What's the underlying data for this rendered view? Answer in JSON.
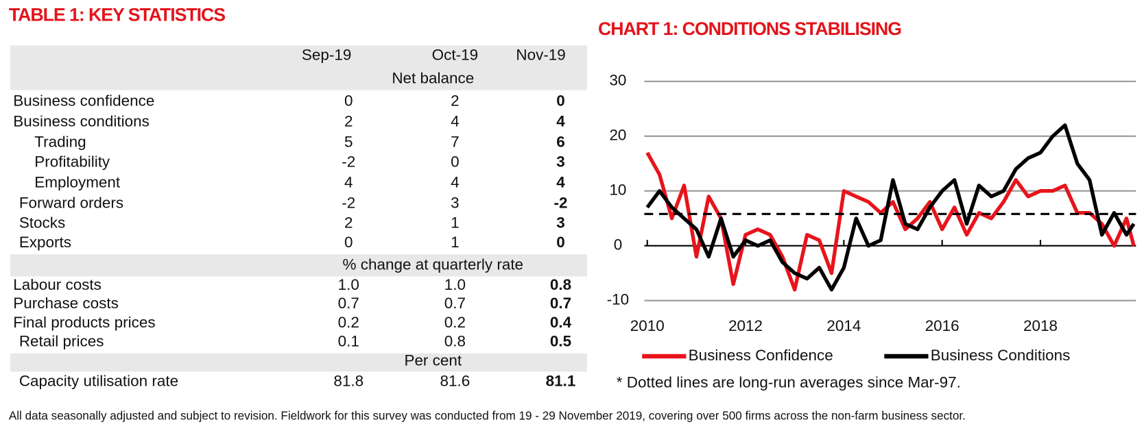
{
  "table": {
    "title": "TABLE 1: KEY STATISTICS",
    "columns": [
      "Sep-19",
      "Oct-19",
      "Nov-19"
    ],
    "sections": [
      {
        "unit": "Net balance",
        "rows": [
          {
            "label": "Business confidence",
            "values": [
              "0",
              "2",
              "0"
            ]
          },
          {
            "label": "Business conditions",
            "values": [
              "2",
              "4",
              "4"
            ]
          },
          {
            "label": "Trading",
            "values": [
              "5",
              "7",
              "6"
            ]
          },
          {
            "label": "Profitability",
            "values": [
              "-2",
              "0",
              "3"
            ]
          },
          {
            "label": "Employment",
            "values": [
              "4",
              "4",
              "4"
            ]
          },
          {
            "label": "Forward orders",
            "values": [
              "-2",
              "3",
              "-2"
            ]
          },
          {
            "label": "Stocks",
            "values": [
              "2",
              "1",
              "3"
            ]
          },
          {
            "label": "Exports",
            "values": [
              "0",
              "1",
              "0"
            ]
          }
        ]
      },
      {
        "unit": "% change at quarterly rate",
        "rows": [
          {
            "label": "Labour costs",
            "values": [
              "1.0",
              "1.0",
              "0.8"
            ]
          },
          {
            "label": "Purchase costs",
            "values": [
              "0.7",
              "0.7",
              "0.7"
            ]
          },
          {
            "label": "Final products prices",
            "values": [
              "0.2",
              "0.2",
              "0.4"
            ]
          },
          {
            "label": "Retail prices",
            "values": [
              "0.1",
              "0.8",
              "0.5"
            ]
          }
        ]
      },
      {
        "unit": "Per cent",
        "rows": [
          {
            "label": "Capacity utilisation rate",
            "values": [
              "81.8",
              "81.6",
              "81.1"
            ]
          }
        ]
      }
    ]
  },
  "chart_data": {
    "type": "line",
    "title": "CHART 1: CONDITIONS STABILISING",
    "note": "* Dotted lines are long-run averages since Mar-97.",
    "x": [
      2010,
      2010.25,
      2010.5,
      2010.75,
      2011,
      2011.25,
      2011.5,
      2011.75,
      2012,
      2012.25,
      2012.5,
      2012.75,
      2013,
      2013.25,
      2013.5,
      2013.75,
      2014,
      2014.25,
      2014.5,
      2014.75,
      2015,
      2015.25,
      2015.5,
      2015.75,
      2016,
      2016.25,
      2016.5,
      2016.75,
      2017,
      2017.25,
      2017.5,
      2017.75,
      2018,
      2018.25,
      2018.5,
      2018.75,
      2019,
      2019.25,
      2019.5,
      2019.75,
      2019.9
    ],
    "series": [
      {
        "name": "Business Confidence",
        "color": "#e8141b",
        "values": [
          17,
          13,
          5,
          11,
          -2,
          9,
          5,
          -7,
          2,
          3,
          2,
          -2,
          -8,
          2,
          1,
          -5,
          10,
          9,
          8,
          6,
          8,
          3,
          5,
          8,
          3,
          7,
          2,
          6,
          5,
          8,
          12,
          9,
          10,
          10,
          11,
          6,
          6,
          4,
          0,
          5,
          0
        ]
      },
      {
        "name": "Business Conditions",
        "color": "#000000",
        "values": [
          7,
          10,
          7,
          5,
          3,
          -2,
          5,
          -2,
          1,
          0,
          1,
          -3,
          -5,
          -6,
          -4,
          -8,
          -4,
          5,
          0,
          1,
          12,
          4,
          3,
          7,
          10,
          12,
          4,
          11,
          9,
          10,
          14,
          16,
          17,
          20,
          22,
          15,
          12,
          2,
          6,
          2,
          4
        ]
      }
    ],
    "average_line": 5.8,
    "xlim": [
      2010,
      2019.9
    ],
    "xticks": [
      2010,
      2012,
      2014,
      2016,
      2018
    ],
    "ylim": [
      -10,
      30
    ],
    "yticks": [
      -10,
      0,
      10,
      20,
      30
    ],
    "grid": true
  },
  "footer": "All data seasonally adjusted and subject to revision. Fieldwork for this survey was conducted from 19 - 29 November 2019, covering over 500 firms across the non-farm business sector."
}
